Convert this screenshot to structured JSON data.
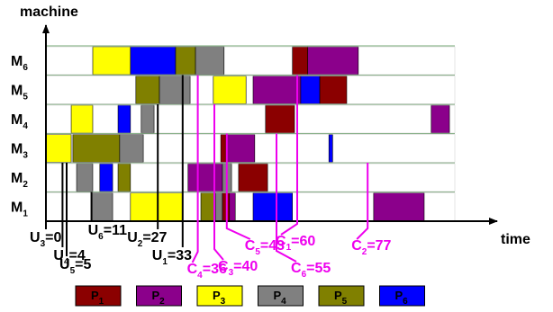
{
  "chart_data": {
    "type": "gantt",
    "y_axis_label": "machine",
    "x_axis_label": "time",
    "colors": {
      "P1": "#8b0000",
      "P2": "#8b008b",
      "P3": "#ffff00",
      "P4": "#808080",
      "P5": "#808000",
      "P6": "#0000ff",
      "C_marker": "#ee00ee",
      "U_marker": "#000000"
    },
    "machines": [
      {
        "name": "M",
        "sub": "6"
      },
      {
        "name": "M",
        "sub": "5"
      },
      {
        "name": "M",
        "sub": "4"
      },
      {
        "name": "M",
        "sub": "3"
      },
      {
        "name": "M",
        "sub": "2"
      },
      {
        "name": "M",
        "sub": "1"
      }
    ],
    "schedule": [
      {
        "machine": "M6",
        "job": "P3",
        "start": 11.3,
        "end": 20.4
      },
      {
        "machine": "M6",
        "job": "P6",
        "start": 20.4,
        "end": 31.3
      },
      {
        "machine": "M6",
        "job": "P5",
        "start": 31.3,
        "end": 36.1
      },
      {
        "machine": "M6",
        "job": "P4",
        "start": 36.1,
        "end": 43.0
      },
      {
        "machine": "M6",
        "job": "P1",
        "start": 59.5,
        "end": 63.2
      },
      {
        "machine": "M6",
        "job": "P2",
        "start": 63.2,
        "end": 75.4
      },
      {
        "machine": "M5",
        "job": "P5",
        "start": 21.7,
        "end": 27.4
      },
      {
        "machine": "M5",
        "job": "P4",
        "start": 27.4,
        "end": 34.8
      },
      {
        "machine": "M5",
        "job": "P3",
        "start": 40.4,
        "end": 48.3
      },
      {
        "machine": "M5",
        "job": "P2",
        "start": 50.0,
        "end": 61.5
      },
      {
        "machine": "M5",
        "job": "P6",
        "start": 61.5,
        "end": 66.1
      },
      {
        "machine": "M5",
        "job": "P1",
        "start": 66.1,
        "end": 72.6
      },
      {
        "machine": "M4",
        "job": "P3",
        "start": 6.1,
        "end": 11.3
      },
      {
        "machine": "M4",
        "job": "P6",
        "start": 17.4,
        "end": 20.4
      },
      {
        "machine": "M4",
        "job": "P4",
        "start": 23.0,
        "end": 26.1
      },
      {
        "machine": "M4",
        "job": "P1",
        "start": 53.0,
        "end": 60.0
      },
      {
        "machine": "M4",
        "job": "P2",
        "start": 93.0,
        "end": 97.4
      },
      {
        "machine": "M3",
        "job": "P3",
        "start": 0.0,
        "end": 6.1
      },
      {
        "machine": "M3",
        "job": "P5",
        "start": 6.5,
        "end": 17.8
      },
      {
        "machine": "M3",
        "job": "P4",
        "start": 17.8,
        "end": 23.5
      },
      {
        "machine": "M3",
        "job": "P1",
        "start": 42.2,
        "end": 43.5
      },
      {
        "machine": "M3",
        "job": "P2",
        "start": 43.5,
        "end": 50.4
      },
      {
        "machine": "M3",
        "job": "P6",
        "start": 68.3,
        "end": 69.2
      },
      {
        "machine": "M2",
        "job": "P4",
        "start": 7.4,
        "end": 11.3
      },
      {
        "machine": "M2",
        "job": "P6",
        "start": 13.0,
        "end": 16.1
      },
      {
        "machine": "M2",
        "job": "P5",
        "start": 17.4,
        "end": 20.4
      },
      {
        "machine": "M2",
        "job": "P2",
        "start": 34.3,
        "end": 42.6
      },
      {
        "machine": "M2",
        "job": "P4",
        "start": 42.6,
        "end": 44.8
      },
      {
        "machine": "M2",
        "job": "P1",
        "start": 46.5,
        "end": 53.5
      },
      {
        "machine": "M1",
        "job": "P4",
        "start": 10.9,
        "end": 16.1
      },
      {
        "machine": "M1",
        "job": "P3",
        "start": 20.4,
        "end": 33.0
      },
      {
        "machine": "M1",
        "job": "P5",
        "start": 37.4,
        "end": 40.9
      },
      {
        "machine": "M1",
        "job": "P4",
        "start": 40.9,
        "end": 42.6
      },
      {
        "machine": "M1",
        "job": "P1",
        "start": 42.6,
        "end": 44.3
      },
      {
        "machine": "M1",
        "job": "P2",
        "start": 44.3,
        "end": 45.7
      },
      {
        "machine": "M1",
        "job": "P6",
        "start": 50.0,
        "end": 59.5
      },
      {
        "machine": "M1",
        "job": "P2",
        "start": 79.1,
        "end": 91.3
      }
    ],
    "release_markers": [
      {
        "main": "U",
        "sub": "3",
        "tail": "=0",
        "t": 0
      },
      {
        "main": "U",
        "sub": "4",
        "tail": "=4",
        "t": 4
      },
      {
        "main": "U",
        "sub": "5",
        "tail": "=5",
        "t": 5
      },
      {
        "main": "U",
        "sub": "6",
        "tail": "=11",
        "t": 11
      },
      {
        "main": "U",
        "sub": "2",
        "tail": "=27",
        "t": 27
      },
      {
        "main": "U",
        "sub": "1",
        "tail": "=33",
        "t": 33
      }
    ],
    "completion_markers": [
      {
        "main": "C",
        "sub": "4",
        "tail": "=36",
        "t": 36
      },
      {
        "main": "C",
        "sub": "3",
        "tail": "=40",
        "t": 40
      },
      {
        "main": "C",
        "sub": "5",
        "tail": "=43",
        "t": 43
      },
      {
        "main": "C",
        "sub": "6",
        "tail": "=55",
        "t": 55
      },
      {
        "main": "C",
        "sub": "1",
        "tail": "=60",
        "t": 60
      },
      {
        "main": "C",
        "sub": "2",
        "tail": "=77",
        "t": 77
      }
    ],
    "legend": [
      {
        "main": "P",
        "sub": "1",
        "job": "P1"
      },
      {
        "main": "P",
        "sub": "2",
        "job": "P2"
      },
      {
        "main": "P",
        "sub": "3",
        "job": "P3"
      },
      {
        "main": "P",
        "sub": "4",
        "job": "P4"
      },
      {
        "main": "P",
        "sub": "5",
        "job": "P5"
      },
      {
        "main": "P",
        "sub": "6",
        "job": "P6"
      }
    ]
  }
}
